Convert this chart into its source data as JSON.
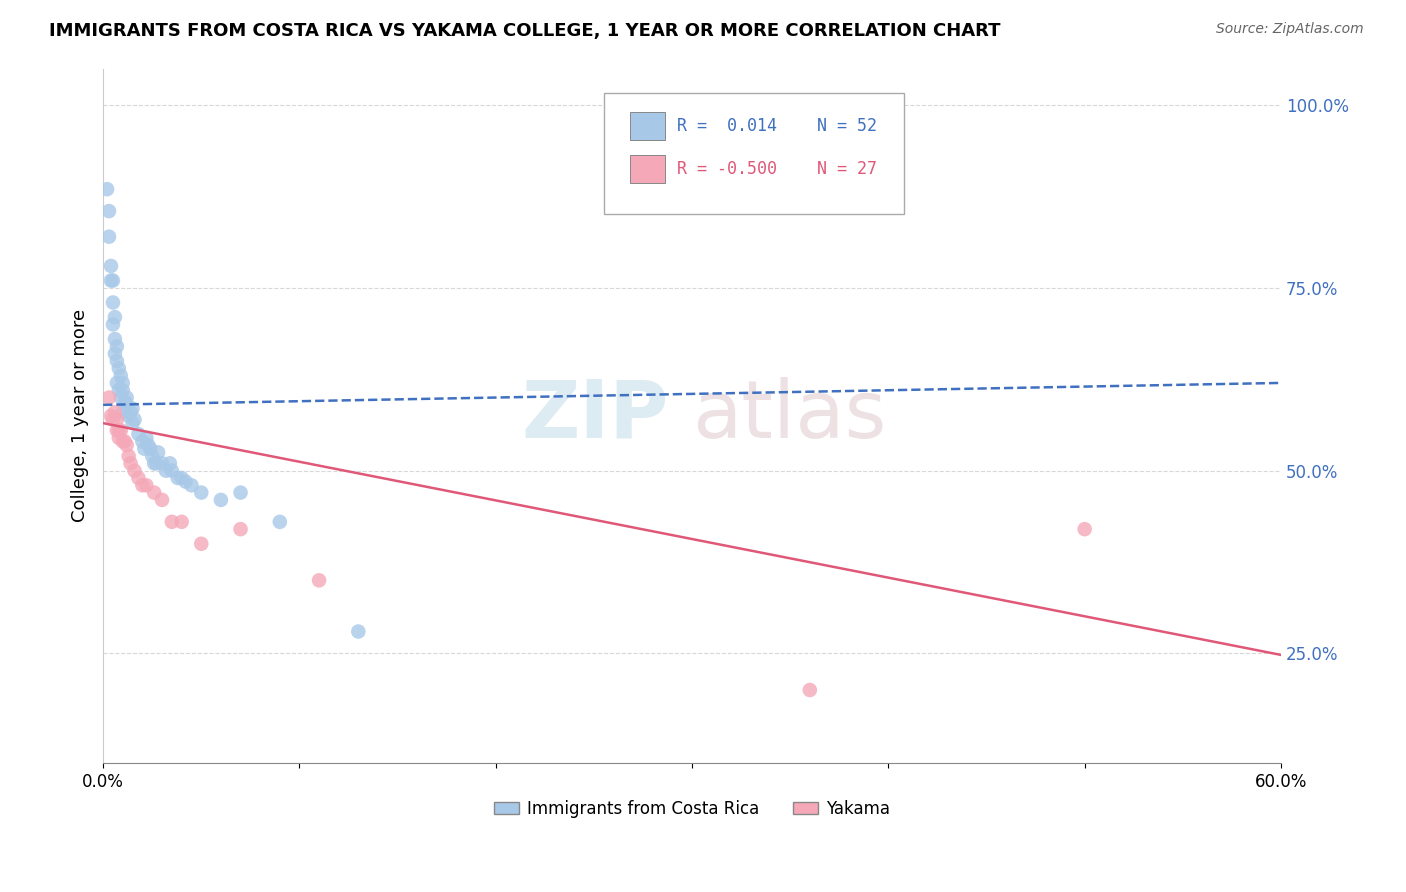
{
  "title": "IMMIGRANTS FROM COSTA RICA VS YAKAMA COLLEGE, 1 YEAR OR MORE CORRELATION CHART",
  "source_text": "Source: ZipAtlas.com",
  "ylabel": "College, 1 year or more",
  "right_yticks": [
    "25.0%",
    "50.0%",
    "75.0%",
    "100.0%"
  ],
  "right_ytick_vals": [
    0.25,
    0.5,
    0.75,
    1.0
  ],
  "watermark_part1": "ZIP",
  "watermark_part2": "atlas",
  "blue_r": "0.014",
  "blue_n": "52",
  "pink_r": "-0.500",
  "pink_n": "27",
  "blue_color": "#a8c8e8",
  "pink_color": "#f4a8b8",
  "blue_line_color": "#4070c0",
  "pink_line_color": "#e05878",
  "blue_scatter_x": [
    0.002,
    0.003,
    0.003,
    0.004,
    0.004,
    0.005,
    0.005,
    0.005,
    0.006,
    0.006,
    0.006,
    0.007,
    0.007,
    0.007,
    0.008,
    0.008,
    0.009,
    0.009,
    0.01,
    0.01,
    0.01,
    0.011,
    0.012,
    0.012,
    0.013,
    0.014,
    0.015,
    0.015,
    0.016,
    0.018,
    0.02,
    0.021,
    0.022,
    0.023,
    0.024,
    0.025,
    0.026,
    0.027,
    0.028,
    0.03,
    0.032,
    0.034,
    0.035,
    0.038,
    0.04,
    0.042,
    0.045,
    0.05,
    0.06,
    0.07,
    0.09,
    0.13
  ],
  "blue_scatter_y": [
    0.885,
    0.855,
    0.82,
    0.78,
    0.76,
    0.76,
    0.73,
    0.7,
    0.71,
    0.68,
    0.66,
    0.67,
    0.65,
    0.62,
    0.64,
    0.61,
    0.63,
    0.6,
    0.62,
    0.61,
    0.58,
    0.595,
    0.6,
    0.59,
    0.575,
    0.58,
    0.585,
    0.565,
    0.57,
    0.55,
    0.54,
    0.53,
    0.545,
    0.535,
    0.53,
    0.52,
    0.51,
    0.51,
    0.525,
    0.51,
    0.5,
    0.51,
    0.5,
    0.49,
    0.49,
    0.485,
    0.48,
    0.47,
    0.46,
    0.47,
    0.43,
    0.28
  ],
  "pink_scatter_x": [
    0.003,
    0.004,
    0.005,
    0.006,
    0.007,
    0.007,
    0.008,
    0.008,
    0.009,
    0.01,
    0.011,
    0.012,
    0.013,
    0.014,
    0.016,
    0.018,
    0.02,
    0.022,
    0.026,
    0.03,
    0.035,
    0.04,
    0.05,
    0.07,
    0.11,
    0.36,
    0.5
  ],
  "pink_scatter_y": [
    0.6,
    0.575,
    0.57,
    0.58,
    0.57,
    0.555,
    0.555,
    0.545,
    0.555,
    0.54,
    0.54,
    0.535,
    0.52,
    0.51,
    0.5,
    0.49,
    0.48,
    0.48,
    0.47,
    0.46,
    0.43,
    0.43,
    0.4,
    0.42,
    0.35,
    0.2,
    0.42
  ],
  "blue_line_x": [
    0.0,
    0.6
  ],
  "blue_line_y": [
    0.59,
    0.62
  ],
  "pink_line_x": [
    0.0,
    0.6
  ],
  "pink_line_y": [
    0.565,
    0.248
  ],
  "xlim": [
    0.0,
    0.6
  ],
  "ylim": [
    0.1,
    1.05
  ],
  "legend_blue_label": "Immigrants from Costa Rica",
  "legend_pink_label": "Yakama",
  "background_color": "#ffffff",
  "grid_color": "#d8d8d8"
}
